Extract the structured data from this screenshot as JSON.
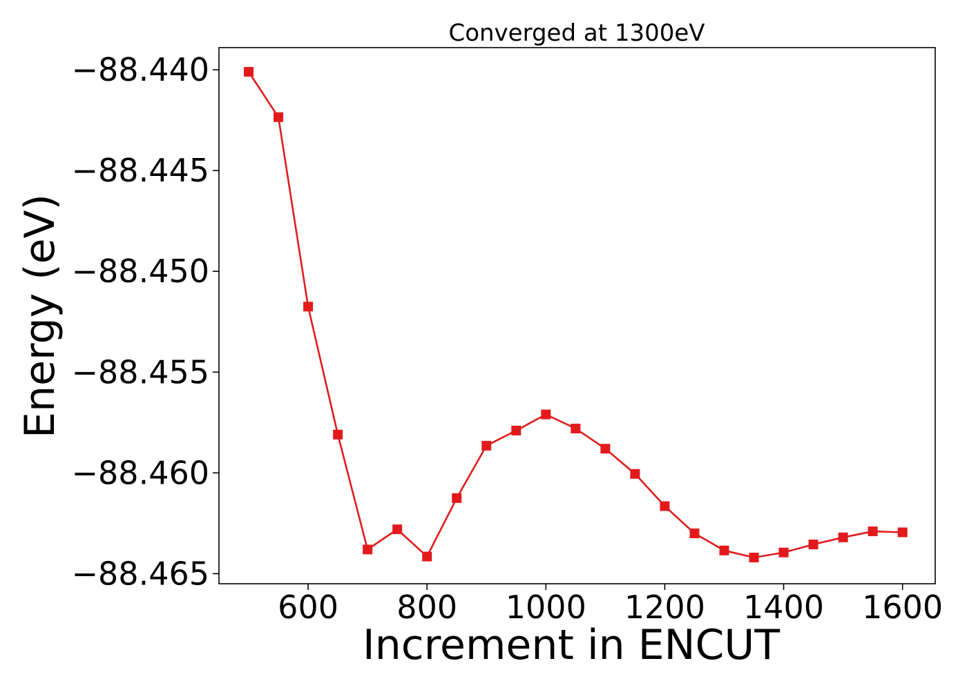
{
  "chart_data": {
    "type": "line",
    "title": "Converged at 1300eV",
    "xlabel": "Increment in ENCUT",
    "ylabel": "Energy (eV)",
    "xlim": [
      450,
      1655
    ],
    "ylim": [
      -88.4655,
      -88.4389
    ],
    "x_ticks": [
      600,
      800,
      1000,
      1200,
      1400,
      1600
    ],
    "x_tick_labels": [
      "600",
      "800",
      "1000",
      "1200",
      "1400",
      "1600"
    ],
    "y_ticks": [
      -88.44,
      -88.445,
      -88.45,
      -88.455,
      -88.46,
      -88.465
    ],
    "y_tick_labels": [
      "−88.440",
      "−88.445",
      "−88.450",
      "−88.455",
      "−88.460",
      "−88.465"
    ],
    "grid": false,
    "legend": "none",
    "series": [
      {
        "color": "#e31a1c",
        "marker": "square",
        "x": [
          500,
          550,
          600,
          650,
          700,
          750,
          800,
          850,
          900,
          950,
          1000,
          1050,
          1100,
          1150,
          1200,
          1250,
          1300,
          1350,
          1400,
          1450,
          1500,
          1550,
          1600
        ],
        "y": [
          -88.4401,
          -88.44235,
          -88.45175,
          -88.4581,
          -88.4638,
          -88.4628,
          -88.46415,
          -88.46125,
          -88.45865,
          -88.4579,
          -88.4571,
          -88.4578,
          -88.4588,
          -88.46005,
          -88.46165,
          -88.463,
          -88.46385,
          -88.4642,
          -88.46395,
          -88.46355,
          -88.4632,
          -88.4629,
          -88.46295
        ]
      }
    ]
  }
}
